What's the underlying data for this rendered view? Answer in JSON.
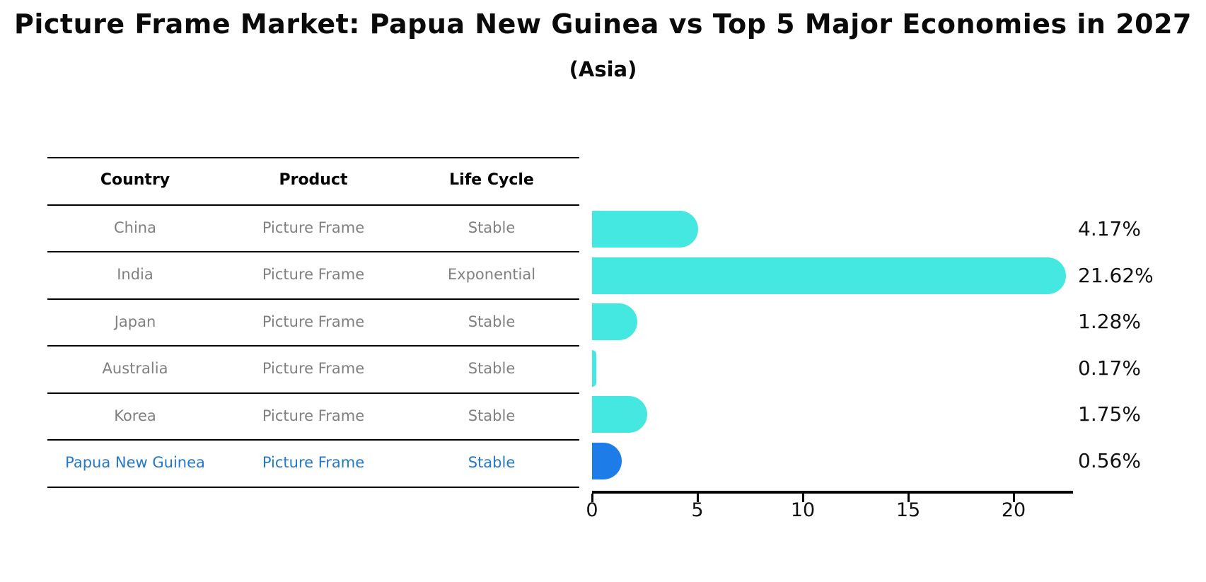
{
  "title": "Picture Frame Market: Papua New Guinea vs Top 5 Major Economies in 2027",
  "subtitle": "(Asia)",
  "colors": {
    "bar_default": "#45e8e0",
    "bar_highlight": "#1e7ce8",
    "row_text": "#808080",
    "highlight_text": "#2478c8",
    "axis": "#000000",
    "title_text": "#0a0a0a"
  },
  "table": {
    "headers": [
      "Country",
      "Product",
      "Life Cycle"
    ],
    "rows": [
      {
        "country": "China",
        "product": "Picture Frame",
        "life_cycle": "Stable",
        "highlight": false
      },
      {
        "country": "India",
        "product": "Picture Frame",
        "life_cycle": "Exponential",
        "highlight": false
      },
      {
        "country": "Japan",
        "product": "Picture Frame",
        "life_cycle": "Stable",
        "highlight": false
      },
      {
        "country": "Australia",
        "product": "Picture Frame",
        "life_cycle": "Stable",
        "highlight": false
      },
      {
        "country": "Korea",
        "product": "Picture Frame",
        "life_cycle": "Stable",
        "highlight": false
      },
      {
        "country": "Papua New Guinea",
        "product": "Picture Frame",
        "life_cycle": "Stable",
        "highlight": true
      }
    ]
  },
  "chart_data": {
    "type": "bar",
    "orientation": "horizontal",
    "title": "Picture Frame Market: Papua New Guinea vs Top 5 Major Economies in 2027",
    "subtitle": "(Asia)",
    "categories": [
      "China",
      "India",
      "Japan",
      "Australia",
      "Korea",
      "Papua New Guinea"
    ],
    "values": [
      4.17,
      21.62,
      1.28,
      0.17,
      1.75,
      0.56
    ],
    "value_labels": [
      "4.17%",
      "21.62%",
      "1.28%",
      "0.17%",
      "1.75%",
      "0.56%"
    ],
    "unit": "%",
    "highlight_index": 5,
    "x_ticks": [
      0,
      5,
      10,
      15,
      20
    ],
    "x_tick_labels": [
      "0",
      "5",
      "10",
      "15",
      "20"
    ],
    "xlim": [
      0,
      22.8
    ],
    "grid": false,
    "legend": false
  }
}
